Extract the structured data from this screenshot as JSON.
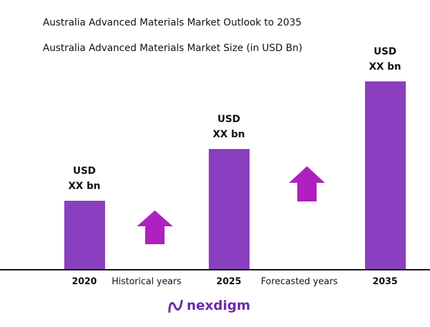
{
  "chart_data": {
    "type": "bar",
    "title": "Australia Advanced Materials Market Outlook to 2035",
    "subtitle": "Australia Advanced Materials Market Size (in USD Bn)",
    "categories": [
      "2020",
      "2025",
      "2035"
    ],
    "values": [
      99,
      175,
      273
    ],
    "value_labels": [
      "USD XX bn",
      "USD XX bn",
      "USD XX bn"
    ],
    "color": "#8a3fc0",
    "annotations": [
      "Historical years",
      "Forecasted years"
    ]
  },
  "brand": "nexdigm"
}
